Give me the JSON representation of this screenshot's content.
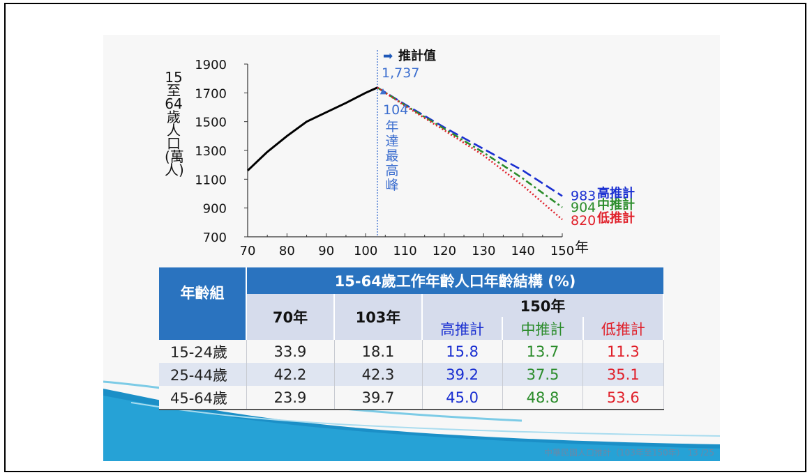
{
  "chart_data": {
    "type": "line",
    "x_axis": {
      "range": [
        70,
        150
      ],
      "ticks": [
        "70",
        "80",
        "90",
        "100",
        "110",
        "120",
        "130",
        "140",
        "150"
      ],
      "unit": "年"
    },
    "y_axis": {
      "range": [
        700,
        1900
      ],
      "ticks": [
        "700",
        "900",
        "1100",
        "1300",
        "1500",
        "1700",
        "1900"
      ],
      "label_chars": [
        "15",
        "至",
        "64",
        "歲",
        "人",
        "口",
        "(萬",
        "人)"
      ]
    },
    "series": [
      {
        "style": "solid",
        "color": "#000000",
        "x": [
          70,
          75,
          80,
          85,
          90,
          95,
          100,
          103
        ],
        "y": [
          1160,
          1290,
          1400,
          1500,
          1565,
          1630,
          1700,
          1737
        ]
      },
      {
        "name": "高推計",
        "style": "dashed",
        "color": "#1a2fd1",
        "x": [
          103,
          110,
          120,
          130,
          140,
          150
        ],
        "y": [
          1737,
          1620,
          1460,
          1310,
          1160,
          983
        ]
      },
      {
        "name": "中推計",
        "style": "dashdot",
        "color": "#2b8c2b",
        "x": [
          103,
          110,
          120,
          130,
          140,
          150
        ],
        "y": [
          1737,
          1615,
          1450,
          1285,
          1105,
          904
        ]
      },
      {
        "name": "低推計",
        "style": "dotted",
        "color": "#e0202a",
        "x": [
          103,
          110,
          120,
          130,
          140,
          150
        ],
        "y": [
          1737,
          1610,
          1440,
          1265,
          1055,
          820
        ]
      }
    ],
    "end_labels": [
      {
        "value": "983",
        "name": "高推計",
        "color": "#1a2fd1"
      },
      {
        "value": "904",
        "name": "中推計",
        "color": "#2b8c2b"
      },
      {
        "value": "820",
        "name": "低推計",
        "color": "#e0202a"
      }
    ],
    "annotations": {
      "projection_label": "推計值",
      "projection_arrow": "➡",
      "peak_value": "1,737",
      "peak_marker": "▲",
      "peak_x": 103,
      "peak_year_num": "104",
      "peak_text_chars": [
        "年",
        "達",
        "最",
        "高",
        "峰"
      ]
    }
  },
  "table": {
    "title": "15-64歲工作年齡人口年齡結構 (%)",
    "group_header": "年齡組",
    "col_70": "70年",
    "col_103": "103年",
    "col_150": "150年",
    "sub_hi": "高推計",
    "sub_mid": "中推計",
    "sub_lo": "低推計",
    "rows": [
      {
        "age": "15-24歲",
        "v70": "33.9",
        "v103": "18.1",
        "hi": "15.8",
        "mid": "13.7",
        "lo": "11.3"
      },
      {
        "age": "25-44歲",
        "v70": "42.2",
        "v103": "42.3",
        "hi": "39.2",
        "mid": "37.5",
        "lo": "35.1"
      },
      {
        "age": "45-64歲",
        "v70": "23.9",
        "v103": "39.7",
        "hi": "45.0",
        "mid": "48.8",
        "lo": "53.6"
      }
    ]
  },
  "footer": "中華民國人口推計（103年至150年） 13 /25"
}
